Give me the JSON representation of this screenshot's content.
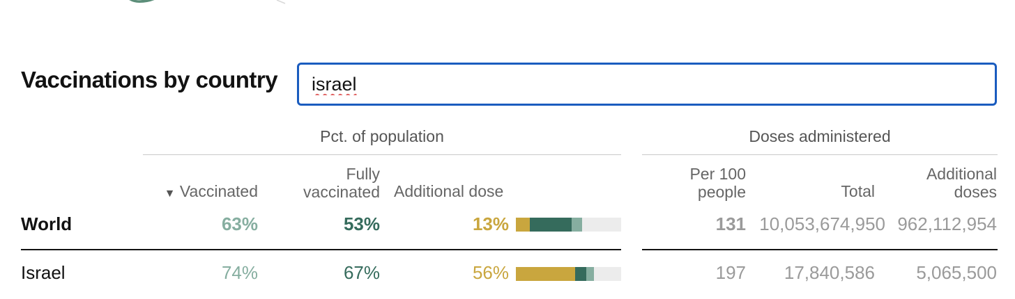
{
  "table_title": "Vaccinations by country",
  "search": {
    "value": "israel"
  },
  "groups": {
    "population": "Pct. of population",
    "doses": "Doses administered"
  },
  "columns": {
    "vaccinated": "Vaccinated",
    "sort_indicator": "▼",
    "fully_line1": "Fully",
    "fully_line2": "vaccinated",
    "additional_dose": "Additional dose",
    "per100_line1": "Per 100",
    "per100_line2": "people",
    "total": "Total",
    "additional_doses_line1": "Additional",
    "additional_doses_line2": "doses"
  },
  "colors": {
    "vaccinated": "#86aea0",
    "fully": "#356b5c",
    "additional": "#c9a63e",
    "bar_track": "#ececec",
    "search_border": "#1a5cbf"
  },
  "rows": [
    {
      "country": "World",
      "vaccinated": "63%",
      "fully": "53%",
      "additional": "13%",
      "per100": "131",
      "total": "10,053,674,950",
      "additional_doses": "962,112,954",
      "bar": {
        "vaccinated": 0.63,
        "fully": 0.53,
        "additional": 0.13
      }
    },
    {
      "country": "Israel",
      "vaccinated": "74%",
      "fully": "67%",
      "additional": "56%",
      "per100": "197",
      "total": "17,840,586",
      "additional_doses": "5,065,500",
      "bar": {
        "vaccinated": 0.74,
        "fully": 0.67,
        "additional": 0.56
      }
    }
  ]
}
